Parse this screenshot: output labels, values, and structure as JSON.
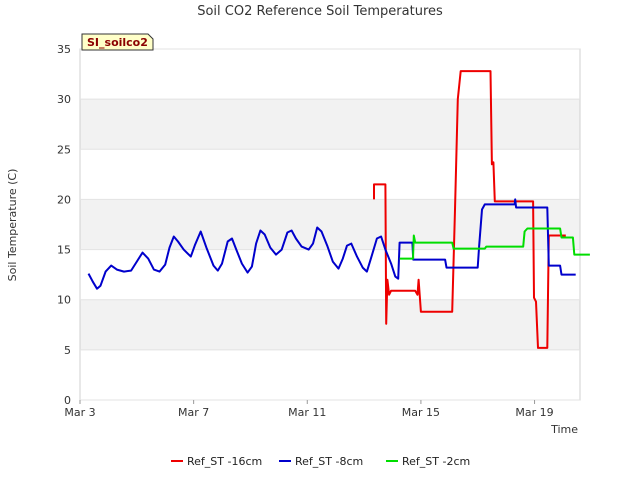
{
  "chart_data": {
    "type": "line",
    "title": "Soil CO2 Reference Soil Temperatures",
    "xlabel": "Time",
    "ylabel": "Soil Temperature (C)",
    "badge": "SI_soilco2",
    "xlim": [
      3,
      20.6
    ],
    "ylim": [
      0,
      35
    ],
    "x_ticks": [
      {
        "value": 3,
        "label": "Mar 3"
      },
      {
        "value": 7,
        "label": "Mar 7"
      },
      {
        "value": 11,
        "label": "Mar 11"
      },
      {
        "value": 15,
        "label": "Mar 15"
      },
      {
        "value": 19,
        "label": "Mar 19"
      }
    ],
    "y_ticks": [
      0,
      5,
      10,
      15,
      20,
      25,
      30,
      35
    ],
    "legend_position": "bottom-center",
    "series": [
      {
        "name": "Ref_ST -16cm",
        "color": "#ee0000",
        "points": [
          [
            13.35,
            20.0
          ],
          [
            13.35,
            21.5
          ],
          [
            13.7,
            21.5
          ],
          [
            13.75,
            21.5
          ],
          [
            13.78,
            7.6
          ],
          [
            13.82,
            12.0
          ],
          [
            13.88,
            10.5
          ],
          [
            13.95,
            10.9
          ],
          [
            14.8,
            10.9
          ],
          [
            14.88,
            10.5
          ],
          [
            14.92,
            12.0
          ],
          [
            15.0,
            8.8
          ],
          [
            16.1,
            8.8
          ],
          [
            16.2,
            19.0
          ],
          [
            16.3,
            30.0
          ],
          [
            16.4,
            32.8
          ],
          [
            17.45,
            32.8
          ],
          [
            17.5,
            23.5
          ],
          [
            17.55,
            23.7
          ],
          [
            17.6,
            19.8
          ],
          [
            18.95,
            19.8
          ],
          [
            18.98,
            10.2
          ],
          [
            19.05,
            9.8
          ],
          [
            19.12,
            5.2
          ],
          [
            19.45,
            5.2
          ],
          [
            19.5,
            16.4
          ],
          [
            20.1,
            16.4
          ]
        ]
      },
      {
        "name": "Ref_ST -8cm",
        "color": "#0000cc",
        "points": [
          [
            3.3,
            12.6
          ],
          [
            3.45,
            11.8
          ],
          [
            3.6,
            11.1
          ],
          [
            3.72,
            11.4
          ],
          [
            3.9,
            12.8
          ],
          [
            4.1,
            13.4
          ],
          [
            4.3,
            13.0
          ],
          [
            4.55,
            12.8
          ],
          [
            4.8,
            12.9
          ],
          [
            5.0,
            13.8
          ],
          [
            5.2,
            14.7
          ],
          [
            5.4,
            14.1
          ],
          [
            5.6,
            13.0
          ],
          [
            5.8,
            12.8
          ],
          [
            6.0,
            13.5
          ],
          [
            6.15,
            15.2
          ],
          [
            6.3,
            16.3
          ],
          [
            6.45,
            15.8
          ],
          [
            6.65,
            15.0
          ],
          [
            6.9,
            14.3
          ],
          [
            7.05,
            15.5
          ],
          [
            7.25,
            16.8
          ],
          [
            7.45,
            15.2
          ],
          [
            7.7,
            13.4
          ],
          [
            7.85,
            12.9
          ],
          [
            8.0,
            13.6
          ],
          [
            8.2,
            15.8
          ],
          [
            8.35,
            16.1
          ],
          [
            8.5,
            15.0
          ],
          [
            8.7,
            13.6
          ],
          [
            8.9,
            12.7
          ],
          [
            9.05,
            13.3
          ],
          [
            9.2,
            15.6
          ],
          [
            9.35,
            16.9
          ],
          [
            9.5,
            16.5
          ],
          [
            9.7,
            15.2
          ],
          [
            9.9,
            14.5
          ],
          [
            10.1,
            15.0
          ],
          [
            10.3,
            16.7
          ],
          [
            10.45,
            16.9
          ],
          [
            10.6,
            16.1
          ],
          [
            10.8,
            15.3
          ],
          [
            11.05,
            15.0
          ],
          [
            11.2,
            15.6
          ],
          [
            11.35,
            17.2
          ],
          [
            11.5,
            16.8
          ],
          [
            11.7,
            15.4
          ],
          [
            11.9,
            13.8
          ],
          [
            12.1,
            13.1
          ],
          [
            12.25,
            14.1
          ],
          [
            12.4,
            15.4
          ],
          [
            12.55,
            15.6
          ],
          [
            12.75,
            14.3
          ],
          [
            12.95,
            13.2
          ],
          [
            13.1,
            12.8
          ],
          [
            13.25,
            14.2
          ],
          [
            13.45,
            16.1
          ],
          [
            13.6,
            16.3
          ],
          [
            13.75,
            15.0
          ],
          [
            13.95,
            13.6
          ],
          [
            14.1,
            12.3
          ],
          [
            14.2,
            12.1
          ],
          [
            14.25,
            15.7
          ],
          [
            14.7,
            15.7
          ],
          [
            14.73,
            14.0
          ],
          [
            15.85,
            14.0
          ],
          [
            15.9,
            13.2
          ],
          [
            17.0,
            13.2
          ],
          [
            17.05,
            15.3
          ],
          [
            17.15,
            19.0
          ],
          [
            17.25,
            19.5
          ],
          [
            18.3,
            19.5
          ],
          [
            18.32,
            20.0
          ],
          [
            18.35,
            19.2
          ],
          [
            19.45,
            19.2
          ],
          [
            19.5,
            13.4
          ],
          [
            19.9,
            13.4
          ],
          [
            19.95,
            12.5
          ],
          [
            20.45,
            12.5
          ]
        ]
      },
      {
        "name": "Ref_ST -2cm",
        "color": "#00dd00",
        "points": [
          [
            14.25,
            14.1
          ],
          [
            14.72,
            14.1
          ],
          [
            14.75,
            16.4
          ],
          [
            14.8,
            15.7
          ],
          [
            16.1,
            15.7
          ],
          [
            16.15,
            15.1
          ],
          [
            17.25,
            15.1
          ],
          [
            17.3,
            15.3
          ],
          [
            18.6,
            15.3
          ],
          [
            18.65,
            16.8
          ],
          [
            18.75,
            17.1
          ],
          [
            19.9,
            17.1
          ],
          [
            19.95,
            16.2
          ],
          [
            20.35,
            16.2
          ],
          [
            20.4,
            14.5
          ],
          [
            20.95,
            14.5
          ]
        ]
      }
    ]
  }
}
